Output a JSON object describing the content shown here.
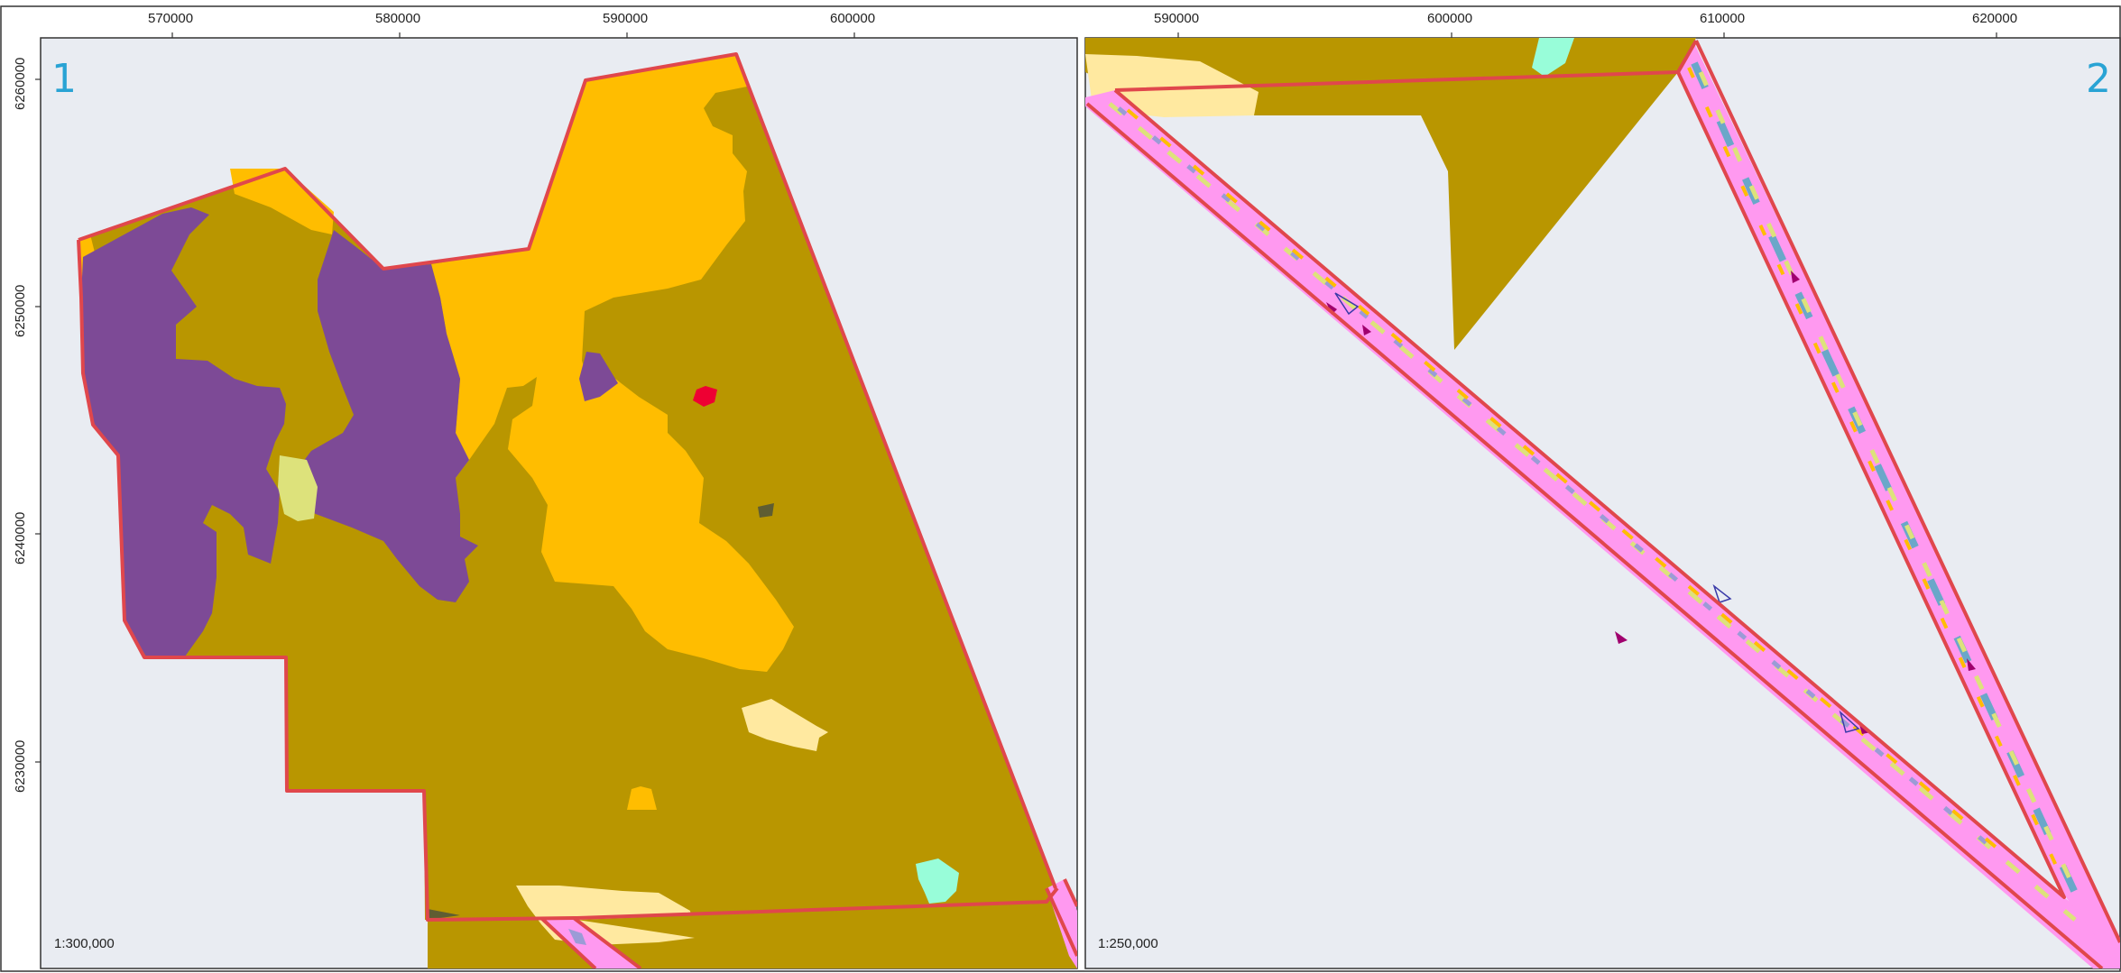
{
  "maps": [
    {
      "number": "1",
      "scale": "1:300,000",
      "x_ticks": [
        "570000",
        "580000",
        "590000",
        "600000"
      ],
      "y_ticks": [
        "6260000",
        "6250000",
        "6240000",
        "6230000"
      ]
    },
    {
      "number": "2",
      "scale": "1:250,000",
      "x_ticks": [
        "590000",
        "600000",
        "610000",
        "620000"
      ]
    }
  ],
  "colors": {
    "background": "#e9ecf2",
    "boundary": "#e0474c",
    "olive": "#b99600",
    "purple": "#7d4a96",
    "orange": "#ffbd00",
    "light_yellow": "#ffe9a0",
    "pale_green": "#dde27b",
    "aqua": "#98fdd9",
    "red": "#ee0033",
    "dark_grey": "#5f5d32",
    "pink": "#ff99f0",
    "blue_grey": "#6aa7c9",
    "lavender": "#9b9bd6",
    "magenta": "#a0006e"
  }
}
